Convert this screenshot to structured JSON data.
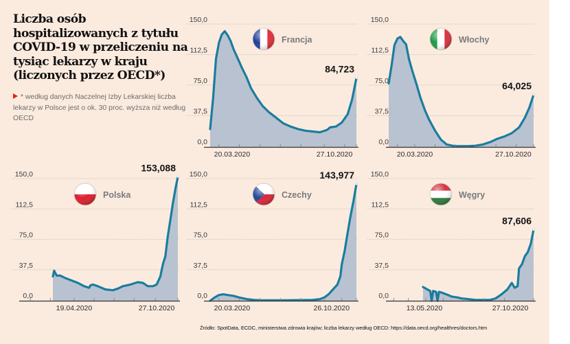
{
  "title": "Liczba osób hospitalizowanych z tytułu COVID-19 w przeliczeniu na tysiąc lekarzy w kraju (liczonych przez OECD*)",
  "note": "* według danych Naczelnej Izby Lekarskiej liczba lekarzy w Polsce jest o ok. 30 proc. wyższa niż według OECD",
  "source": "Źródło: SpotData, ECDC, ministerstwa zdrowia krajów; liczba lekarzy według OECD: https://data.oecd.org/healthres/doctors.htm",
  "colors": {
    "background": "#fbebdf",
    "line": "#1a7d9e",
    "area": "#b9c2d0",
    "grid": "#cfc4b8",
    "axis": "#333333",
    "note_marker": "#e2231a"
  },
  "chart_data": [
    {
      "type": "area",
      "country": "Francja",
      "flag": "france-flag-icon",
      "flag_colors": [
        "#1f3f9a",
        "#ffffff",
        "#e0303a"
      ],
      "flag_orientation": "vertical",
      "ylim": [
        0,
        150
      ],
      "yticks": [
        "0,0",
        "37,5",
        "75,0",
        "112,5",
        "150,0"
      ],
      "xticks": [
        "20.03.2020",
        "27.10.2020"
      ],
      "last_value_label": "84,723",
      "grid": true,
      "series": {
        "name": "Francja",
        "x": [
          0,
          0.02,
          0.04,
          0.06,
          0.08,
          0.1,
          0.12,
          0.14,
          0.16,
          0.19,
          0.22,
          0.25,
          0.28,
          0.32,
          0.36,
          0.4,
          0.45,
          0.5,
          0.55,
          0.6,
          0.65,
          0.7,
          0.75,
          0.8,
          0.82,
          0.86,
          0.9,
          0.94,
          0.97,
          1.0
        ],
        "values": [
          22,
          60,
          108,
          128,
          138,
          142,
          137,
          130,
          120,
          108,
          96,
          85,
          72,
          60,
          50,
          43,
          36,
          29,
          25,
          22,
          20,
          19,
          18,
          21,
          24,
          25,
          30,
          40,
          58,
          84.723
        ]
      }
    },
    {
      "type": "area",
      "country": "Włochy",
      "flag": "italy-flag-icon",
      "flag_colors": [
        "#1f9a45",
        "#ffffff",
        "#d9323e"
      ],
      "flag_orientation": "vertical",
      "ylim": [
        0,
        150
      ],
      "yticks": [
        "0,0",
        "37,5",
        "75,0",
        "112,5",
        "150,0"
      ],
      "xticks": [
        "20.03.2020",
        "27.10.2020"
      ],
      "last_value_label": "64,025",
      "grid": true,
      "series": {
        "name": "Włochy",
        "x": [
          0,
          0.02,
          0.04,
          0.06,
          0.08,
          0.1,
          0.12,
          0.14,
          0.16,
          0.19,
          0.22,
          0.25,
          0.28,
          0.32,
          0.36,
          0.4,
          0.44,
          0.46,
          0.5,
          0.55,
          0.6,
          0.65,
          0.7,
          0.75,
          0.8,
          0.85,
          0.9,
          0.94,
          0.97,
          1.0
        ],
        "values": [
          78,
          100,
          125,
          133,
          135,
          130,
          126,
          108,
          95,
          78,
          60,
          45,
          33,
          20,
          9,
          3,
          1.5,
          1,
          1,
          1,
          1.5,
          3,
          6,
          10,
          13,
          17,
          24,
          36,
          48,
          64.025
        ]
      }
    },
    {
      "type": "area",
      "country": "Polska",
      "flag": "poland-flag-icon",
      "flag_colors": [
        "#ffffff",
        "#dc1f2e"
      ],
      "flag_orientation": "horizontal",
      "ylim": [
        0,
        150
      ],
      "yticks": [
        "0,0",
        "37,5",
        "75,0",
        "112,5",
        "150,0"
      ],
      "xticks": [
        "19.04.2020",
        "27.10.2020"
      ],
      "last_value_label": "153,088",
      "grid": true,
      "series": {
        "name": "Polska",
        "x": [
          0,
          0.01,
          0.03,
          0.06,
          0.1,
          0.15,
          0.2,
          0.25,
          0.29,
          0.3,
          0.32,
          0.36,
          0.42,
          0.48,
          0.52,
          0.56,
          0.62,
          0.68,
          0.72,
          0.76,
          0.8,
          0.83,
          0.86,
          0.88,
          0.9,
          0.92,
          0.94,
          0.96,
          0.98,
          1.0
        ],
        "values": [
          30,
          37,
          31,
          31,
          28,
          25,
          22,
          18,
          16,
          19,
          20,
          18,
          14,
          13,
          15,
          18,
          20,
          23,
          22,
          18,
          18,
          20,
          30,
          45,
          55,
          80,
          100,
          120,
          138,
          153.088
        ]
      }
    },
    {
      "type": "area",
      "country": "Czechy",
      "flag": "czech-flag-icon",
      "flag_colors": [
        "#ffffff",
        "#d7263a",
        "#1f4a9a"
      ],
      "flag_orientation": "horizontal-with-triangle",
      "ylim": [
        0,
        150
      ],
      "yticks": [
        "0,0",
        "37,5",
        "75,0",
        "112,5",
        "150,0"
      ],
      "xticks": [
        "20.03.2020",
        "26.10.2020"
      ],
      "last_value_label": "143,977",
      "grid": true,
      "series": {
        "name": "Czechy",
        "x": [
          0,
          0.03,
          0.06,
          0.09,
          0.12,
          0.16,
          0.2,
          0.25,
          0.3,
          0.35,
          0.4,
          0.5,
          0.6,
          0.7,
          0.75,
          0.78,
          0.81,
          0.84,
          0.87,
          0.89,
          0.9,
          0.92,
          0.94,
          0.96,
          0.98,
          1.0
        ],
        "values": [
          0,
          4,
          7,
          8,
          7,
          6,
          4,
          2,
          1,
          0.5,
          0.5,
          0.5,
          0.8,
          1,
          2,
          4,
          8,
          14,
          20,
          30,
          45,
          62,
          84,
          105,
          123,
          143.977
        ]
      }
    },
    {
      "type": "area",
      "country": "Węgry",
      "flag": "hungary-flag-icon",
      "flag_colors": [
        "#d8323f",
        "#ffffff",
        "#2f7a3c"
      ],
      "flag_orientation": "horizontal",
      "ylim": [
        0,
        150
      ],
      "yticks": [
        "0,0",
        "37,5",
        "75,0",
        "112,5",
        "150,0"
      ],
      "xticks": [
        "13.05.2020",
        "27.10.2020"
      ],
      "last_value_label": "87,606",
      "grid": true,
      "series": {
        "name": "Węgry",
        "x": [
          0.24,
          0.27,
          0.29,
          0.3,
          0.31,
          0.33,
          0.34,
          0.35,
          0.37,
          0.4,
          0.44,
          0.48,
          0.5,
          0.55,
          0.6,
          0.65,
          0.7,
          0.74,
          0.78,
          0.82,
          0.85,
          0.87,
          0.89,
          0.9,
          0.92,
          0.94,
          0.96,
          0.98,
          1.0
        ],
        "values": [
          17,
          14,
          12,
          0,
          12,
          11,
          0,
          11,
          10,
          8,
          5,
          4,
          3,
          2,
          1,
          1,
          1,
          3,
          8,
          14,
          22,
          16,
          18,
          40,
          45,
          55,
          60,
          70,
          87.606
        ]
      }
    }
  ]
}
